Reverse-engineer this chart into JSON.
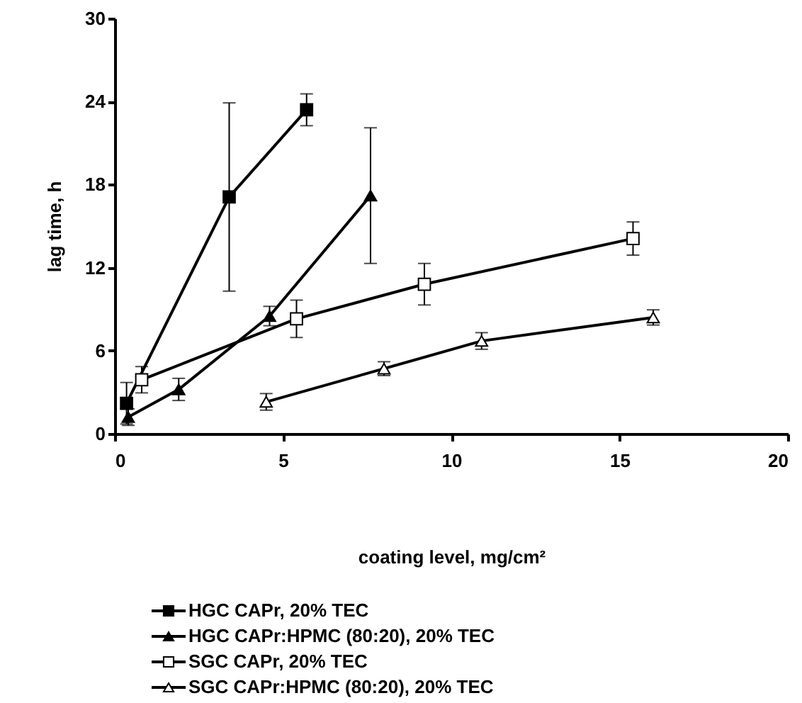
{
  "chart_data": {
    "type": "line",
    "xlabel": "coating level, mg/cm²",
    "ylabel": "lag time, h",
    "xlim": [
      0,
      20
    ],
    "xticks": [
      0,
      5,
      10,
      15,
      20
    ],
    "ylim": [
      0,
      30
    ],
    "yticks": [
      0,
      6,
      12,
      18,
      24,
      30
    ],
    "grid": false,
    "legend": "bottom",
    "line_style": "solid",
    "series": [
      {
        "name": "HGC CAPr, 20% TEC",
        "color": "#000000",
        "marker": "square",
        "x": [
          0.35,
          3.4,
          5.7
        ],
        "values": [
          2.2,
          17.1,
          23.4
        ],
        "errors": [
          1.5,
          6.8,
          1.15
        ]
      },
      {
        "name": "HGC CAPr:HPMC (80:20), 20% TEC",
        "color": "#000000",
        "marker": "triangle",
        "x": [
          0.4,
          1.9,
          4.6,
          7.6
        ],
        "values": [
          1.2,
          3.2,
          8.5,
          17.2
        ],
        "errors": [
          0.6,
          0.8,
          0.7,
          4.9
        ]
      },
      {
        "name": "SGC CAPr, 20% TEC",
        "color": "#000000",
        "marker": "square",
        "x": [
          0.8,
          5.4,
          9.2,
          15.4
        ],
        "values": [
          3.9,
          8.3,
          10.8,
          14.1
        ],
        "errors": [
          0.95,
          1.35,
          1.5,
          1.2
        ]
      },
      {
        "name": "SGC CAPr:HPMC (80:20), 20% TEC",
        "color": "#000000",
        "marker": "triangle",
        "x": [
          4.5,
          8.0,
          10.9,
          16.0
        ],
        "values": [
          2.3,
          4.7,
          6.7,
          8.4
        ],
        "errors": [
          0.6,
          0.5,
          0.6,
          0.55
        ]
      }
    ]
  }
}
